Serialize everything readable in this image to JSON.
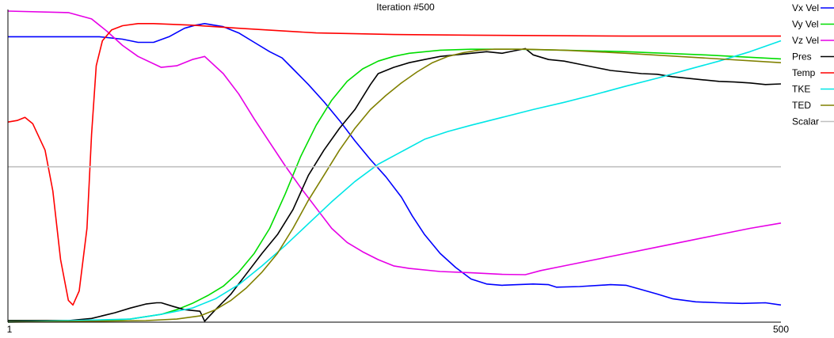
{
  "chart_data": {
    "type": "line",
    "title": "Iteration #500",
    "xlabel": "",
    "ylabel": "",
    "xlim": [
      1,
      500
    ],
    "ylim": [
      0,
      1
    ],
    "x_ticks": [
      "1",
      "500"
    ],
    "grid": false,
    "legend": "right",
    "series": [
      {
        "name": "Vx Vel",
        "color": "#0000ff",
        "points": [
          [
            1,
            0.913
          ],
          [
            50,
            0.913
          ],
          [
            60,
            0.913
          ],
          [
            75,
            0.905
          ],
          [
            85,
            0.895
          ],
          [
            95,
            0.895
          ],
          [
            105,
            0.913
          ],
          [
            115,
            0.94
          ],
          [
            122,
            0.95
          ],
          [
            128,
            0.955
          ],
          [
            140,
            0.945
          ],
          [
            150,
            0.925
          ],
          [
            160,
            0.895
          ],
          [
            170,
            0.865
          ],
          [
            178,
            0.845
          ],
          [
            185,
            0.81
          ],
          [
            195,
            0.76
          ],
          [
            205,
            0.705
          ],
          [
            215,
            0.645
          ],
          [
            225,
            0.58
          ],
          [
            235,
            0.52
          ],
          [
            245,
            0.465
          ],
          [
            255,
            0.4
          ],
          [
            262,
            0.34
          ],
          [
            270,
            0.28
          ],
          [
            280,
            0.22
          ],
          [
            290,
            0.175
          ],
          [
            300,
            0.138
          ],
          [
            310,
            0.122
          ],
          [
            320,
            0.118
          ],
          [
            330,
            0.12
          ],
          [
            340,
            0.122
          ],
          [
            350,
            0.12
          ],
          [
            355,
            0.112
          ],
          [
            370,
            0.114
          ],
          [
            390,
            0.12
          ],
          [
            400,
            0.118
          ],
          [
            410,
            0.104
          ],
          [
            420,
            0.09
          ],
          [
            430,
            0.075
          ],
          [
            445,
            0.065
          ],
          [
            460,
            0.062
          ],
          [
            475,
            0.06
          ],
          [
            490,
            0.062
          ],
          [
            500,
            0.055
          ]
        ]
      },
      {
        "name": "Vy Vel",
        "color": "#00dd00",
        "points": [
          [
            1,
            0.005
          ],
          [
            60,
            0.005
          ],
          [
            80,
            0.01
          ],
          [
            100,
            0.025
          ],
          [
            110,
            0.04
          ],
          [
            120,
            0.06
          ],
          [
            130,
            0.085
          ],
          [
            140,
            0.115
          ],
          [
            150,
            0.16
          ],
          [
            160,
            0.22
          ],
          [
            170,
            0.3
          ],
          [
            180,
            0.41
          ],
          [
            190,
            0.53
          ],
          [
            200,
            0.63
          ],
          [
            210,
            0.71
          ],
          [
            220,
            0.77
          ],
          [
            230,
            0.81
          ],
          [
            240,
            0.835
          ],
          [
            250,
            0.85
          ],
          [
            260,
            0.86
          ],
          [
            280,
            0.87
          ],
          [
            300,
            0.873
          ],
          [
            330,
            0.873
          ],
          [
            360,
            0.87
          ],
          [
            400,
            0.865
          ],
          [
            450,
            0.855
          ],
          [
            500,
            0.842
          ]
        ]
      },
      {
        "name": "Vz Vel",
        "color": "#e600e6",
        "points": [
          [
            1,
            0.995
          ],
          [
            40,
            0.99
          ],
          [
            55,
            0.97
          ],
          [
            65,
            0.93
          ],
          [
            75,
            0.885
          ],
          [
            85,
            0.85
          ],
          [
            100,
            0.815
          ],
          [
            110,
            0.82
          ],
          [
            120,
            0.84
          ],
          [
            128,
            0.85
          ],
          [
            140,
            0.795
          ],
          [
            150,
            0.73
          ],
          [
            160,
            0.65
          ],
          [
            170,
            0.575
          ],
          [
            180,
            0.5
          ],
          [
            190,
            0.43
          ],
          [
            200,
            0.365
          ],
          [
            210,
            0.3
          ],
          [
            220,
            0.255
          ],
          [
            230,
            0.225
          ],
          [
            240,
            0.2
          ],
          [
            250,
            0.18
          ],
          [
            260,
            0.172
          ],
          [
            280,
            0.162
          ],
          [
            300,
            0.158
          ],
          [
            320,
            0.153
          ],
          [
            335,
            0.152
          ],
          [
            345,
            0.165
          ],
          [
            360,
            0.18
          ],
          [
            380,
            0.2
          ],
          [
            400,
            0.22
          ],
          [
            420,
            0.24
          ],
          [
            440,
            0.26
          ],
          [
            460,
            0.28
          ],
          [
            480,
            0.3
          ],
          [
            500,
            0.317
          ]
        ]
      },
      {
        "name": "Pres",
        "color": "#000000",
        "points": [
          [
            1,
            0.005
          ],
          [
            40,
            0.005
          ],
          [
            55,
            0.012
          ],
          [
            70,
            0.03
          ],
          [
            80,
            0.045
          ],
          [
            90,
            0.058
          ],
          [
            97,
            0.062
          ],
          [
            100,
            0.062
          ],
          [
            108,
            0.05
          ],
          [
            115,
            0.04
          ],
          [
            125,
            0.035
          ],
          [
            128,
            0.003
          ],
          [
            135,
            0.04
          ],
          [
            145,
            0.09
          ],
          [
            155,
            0.155
          ],
          [
            165,
            0.22
          ],
          [
            175,
            0.28
          ],
          [
            185,
            0.36
          ],
          [
            195,
            0.47
          ],
          [
            205,
            0.55
          ],
          [
            215,
            0.62
          ],
          [
            225,
            0.68
          ],
          [
            235,
            0.76
          ],
          [
            240,
            0.795
          ],
          [
            250,
            0.815
          ],
          [
            260,
            0.83
          ],
          [
            270,
            0.84
          ],
          [
            280,
            0.85
          ],
          [
            290,
            0.855
          ],
          [
            300,
            0.86
          ],
          [
            310,
            0.865
          ],
          [
            320,
            0.86
          ],
          [
            330,
            0.87
          ],
          [
            335,
            0.875
          ],
          [
            340,
            0.855
          ],
          [
            350,
            0.84
          ],
          [
            360,
            0.835
          ],
          [
            370,
            0.825
          ],
          [
            380,
            0.815
          ],
          [
            390,
            0.805
          ],
          [
            400,
            0.8
          ],
          [
            410,
            0.795
          ],
          [
            420,
            0.793
          ],
          [
            430,
            0.785
          ],
          [
            440,
            0.78
          ],
          [
            450,
            0.775
          ],
          [
            460,
            0.77
          ],
          [
            470,
            0.768
          ],
          [
            480,
            0.765
          ],
          [
            490,
            0.76
          ],
          [
            500,
            0.762
          ]
        ]
      },
      {
        "name": "Temp",
        "color": "#ff0000",
        "points": [
          [
            1,
            0.64
          ],
          [
            7,
            0.645
          ],
          [
            12,
            0.655
          ],
          [
            17,
            0.635
          ],
          [
            25,
            0.55
          ],
          [
            30,
            0.42
          ],
          [
            35,
            0.2
          ],
          [
            40,
            0.07
          ],
          [
            43,
            0.055
          ],
          [
            47,
            0.1
          ],
          [
            52,
            0.3
          ],
          [
            55,
            0.6
          ],
          [
            58,
            0.82
          ],
          [
            62,
            0.9
          ],
          [
            68,
            0.935
          ],
          [
            75,
            0.948
          ],
          [
            85,
            0.955
          ],
          [
            95,
            0.955
          ],
          [
            120,
            0.95
          ],
          [
            150,
            0.94
          ],
          [
            200,
            0.925
          ],
          [
            250,
            0.92
          ],
          [
            300,
            0.918
          ],
          [
            400,
            0.915
          ],
          [
            500,
            0.915
          ]
        ]
      },
      {
        "name": "TKE",
        "color": "#00e6e6",
        "points": [
          [
            1,
            0.0
          ],
          [
            80,
            0.01
          ],
          [
            100,
            0.025
          ],
          [
            120,
            0.045
          ],
          [
            135,
            0.075
          ],
          [
            150,
            0.12
          ],
          [
            165,
            0.18
          ],
          [
            180,
            0.245
          ],
          [
            195,
            0.315
          ],
          [
            210,
            0.385
          ],
          [
            225,
            0.45
          ],
          [
            240,
            0.505
          ],
          [
            255,
            0.545
          ],
          [
            270,
            0.585
          ],
          [
            285,
            0.61
          ],
          [
            300,
            0.63
          ],
          [
            320,
            0.655
          ],
          [
            340,
            0.68
          ],
          [
            360,
            0.703
          ],
          [
            380,
            0.728
          ],
          [
            400,
            0.755
          ],
          [
            420,
            0.78
          ],
          [
            440,
            0.808
          ],
          [
            460,
            0.835
          ],
          [
            480,
            0.865
          ],
          [
            500,
            0.9
          ]
        ]
      },
      {
        "name": "TED",
        "color": "#808000",
        "points": [
          [
            1,
            0.0
          ],
          [
            90,
            0.005
          ],
          [
            110,
            0.01
          ],
          [
            125,
            0.02
          ],
          [
            135,
            0.04
          ],
          [
            145,
            0.07
          ],
          [
            155,
            0.11
          ],
          [
            165,
            0.16
          ],
          [
            175,
            0.22
          ],
          [
            185,
            0.3
          ],
          [
            195,
            0.39
          ],
          [
            205,
            0.47
          ],
          [
            215,
            0.55
          ],
          [
            225,
            0.62
          ],
          [
            235,
            0.68
          ],
          [
            245,
            0.725
          ],
          [
            255,
            0.765
          ],
          [
            265,
            0.8
          ],
          [
            275,
            0.83
          ],
          [
            285,
            0.85
          ],
          [
            295,
            0.862
          ],
          [
            305,
            0.87
          ],
          [
            315,
            0.873
          ],
          [
            335,
            0.873
          ],
          [
            360,
            0.87
          ],
          [
            400,
            0.86
          ],
          [
            450,
            0.845
          ],
          [
            500,
            0.83
          ]
        ]
      },
      {
        "name": "Scalar",
        "color": "#c0c0c0",
        "points": [
          [
            1,
            0.497
          ],
          [
            500,
            0.497
          ]
        ]
      }
    ]
  }
}
